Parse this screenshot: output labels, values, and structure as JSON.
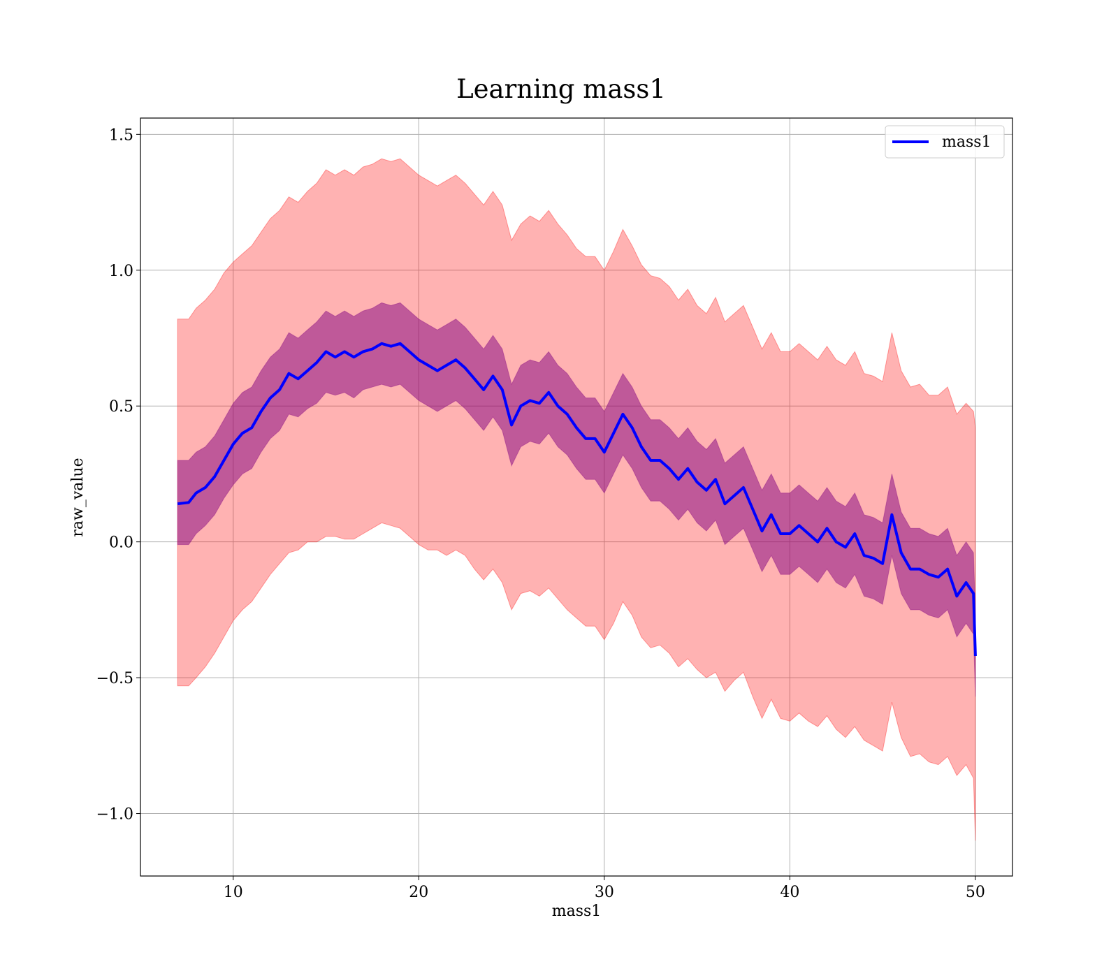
{
  "chart_data": {
    "type": "area",
    "title": "Learning mass1",
    "xlabel": "mass1",
    "ylabel": "raw_value",
    "xlim": [
      5,
      52
    ],
    "ylim": [
      -1.23,
      1.56
    ],
    "xticks": [
      10,
      20,
      30,
      40,
      50
    ],
    "xtick_labels": [
      "10",
      "20",
      "30",
      "40",
      "50"
    ],
    "yticks": [
      -1.0,
      -0.5,
      0.0,
      0.5,
      1.0,
      1.5
    ],
    "ytick_labels": [
      "−1.0",
      "−0.5",
      "0.0",
      "0.5",
      "1.0",
      "1.5"
    ],
    "grid": true,
    "legend": {
      "position": "top-right",
      "entries": [
        "mass1"
      ]
    },
    "x": [
      7.0,
      7.6,
      8.0,
      8.5,
      9.0,
      9.5,
      10.0,
      10.5,
      11.0,
      11.5,
      12.0,
      12.5,
      13.0,
      13.5,
      14.0,
      14.5,
      15.0,
      15.5,
      16.0,
      16.5,
      17.0,
      17.5,
      18.0,
      18.5,
      19.0,
      19.5,
      20.0,
      20.5,
      21.0,
      21.5,
      22.0,
      22.5,
      23.0,
      23.5,
      24.0,
      24.5,
      25.0,
      25.5,
      26.0,
      26.5,
      27.0,
      27.5,
      28.0,
      28.5,
      29.0,
      29.5,
      30.0,
      30.5,
      31.0,
      31.5,
      32.0,
      32.5,
      33.0,
      33.5,
      34.0,
      34.5,
      35.0,
      35.5,
      36.0,
      36.5,
      37.0,
      37.5,
      38.0,
      38.5,
      39.0,
      39.5,
      40.0,
      40.5,
      41.0,
      41.5,
      42.0,
      42.5,
      43.0,
      43.5,
      44.0,
      44.5,
      45.0,
      45.5,
      46.0,
      46.5,
      47.0,
      47.5,
      48.0,
      48.5,
      49.0,
      49.5,
      49.9,
      50.0
    ],
    "series": [
      {
        "name": "mass1",
        "color": "#0000ff",
        "values": [
          0.14,
          0.145,
          0.18,
          0.2,
          0.24,
          0.3,
          0.36,
          0.4,
          0.42,
          0.48,
          0.53,
          0.56,
          0.62,
          0.6,
          0.63,
          0.66,
          0.7,
          0.68,
          0.7,
          0.68,
          0.7,
          0.71,
          0.73,
          0.72,
          0.73,
          0.7,
          0.67,
          0.65,
          0.63,
          0.65,
          0.67,
          0.64,
          0.6,
          0.56,
          0.61,
          0.56,
          0.43,
          0.5,
          0.52,
          0.51,
          0.55,
          0.5,
          0.47,
          0.42,
          0.38,
          0.38,
          0.33,
          0.4,
          0.47,
          0.42,
          0.35,
          0.3,
          0.3,
          0.27,
          0.23,
          0.27,
          0.22,
          0.19,
          0.23,
          0.14,
          0.17,
          0.2,
          0.12,
          0.04,
          0.1,
          0.03,
          0.03,
          0.06,
          0.03,
          0.0,
          0.05,
          0.0,
          -0.02,
          0.03,
          -0.05,
          -0.06,
          -0.08,
          0.1,
          -0.04,
          -0.1,
          -0.1,
          -0.12,
          -0.13,
          -0.1,
          -0.2,
          -0.15,
          -0.19,
          -0.42
        ]
      }
    ],
    "bands": [
      {
        "color": "#ff0000",
        "opacity": 0.3,
        "lower": [
          -0.53,
          -0.53,
          -0.5,
          -0.46,
          -0.41,
          -0.35,
          -0.29,
          -0.25,
          -0.22,
          -0.17,
          -0.12,
          -0.08,
          -0.04,
          -0.03,
          0.0,
          0.0,
          0.02,
          0.02,
          0.01,
          0.01,
          0.03,
          0.05,
          0.07,
          0.06,
          0.05,
          0.02,
          -0.01,
          -0.03,
          -0.03,
          -0.05,
          -0.03,
          -0.05,
          -0.1,
          -0.14,
          -0.1,
          -0.15,
          -0.25,
          -0.19,
          -0.18,
          -0.2,
          -0.17,
          -0.21,
          -0.25,
          -0.28,
          -0.31,
          -0.31,
          -0.36,
          -0.3,
          -0.22,
          -0.27,
          -0.35,
          -0.39,
          -0.38,
          -0.41,
          -0.46,
          -0.43,
          -0.47,
          -0.5,
          -0.48,
          -0.55,
          -0.51,
          -0.48,
          -0.57,
          -0.65,
          -0.58,
          -0.65,
          -0.66,
          -0.63,
          -0.66,
          -0.68,
          -0.64,
          -0.69,
          -0.72,
          -0.68,
          -0.73,
          -0.75,
          -0.77,
          -0.59,
          -0.72,
          -0.79,
          -0.78,
          -0.81,
          -0.82,
          -0.79,
          -0.86,
          -0.82,
          -0.87,
          -1.1
        ]
      },
      {
        "color": "#ff0000",
        "opacity": 0.3,
        "upper": [
          0.82,
          0.82,
          0.86,
          0.89,
          0.93,
          0.99,
          1.03,
          1.06,
          1.09,
          1.14,
          1.19,
          1.22,
          1.27,
          1.25,
          1.29,
          1.32,
          1.37,
          1.35,
          1.37,
          1.35,
          1.38,
          1.39,
          1.41,
          1.4,
          1.41,
          1.38,
          1.35,
          1.33,
          1.31,
          1.33,
          1.35,
          1.32,
          1.28,
          1.24,
          1.29,
          1.24,
          1.11,
          1.17,
          1.2,
          1.18,
          1.22,
          1.17,
          1.13,
          1.08,
          1.05,
          1.05,
          1.0,
          1.07,
          1.15,
          1.09,
          1.02,
          0.98,
          0.97,
          0.94,
          0.89,
          0.93,
          0.87,
          0.84,
          0.9,
          0.81,
          0.84,
          0.87,
          0.79,
          0.71,
          0.77,
          0.7,
          0.7,
          0.73,
          0.7,
          0.67,
          0.72,
          0.67,
          0.65,
          0.7,
          0.62,
          0.61,
          0.59,
          0.77,
          0.63,
          0.57,
          0.58,
          0.54,
          0.54,
          0.57,
          0.47,
          0.51,
          0.48,
          0.42
        ]
      },
      {
        "color": "#800080",
        "opacity": 0.5,
        "lower": [
          -0.01,
          -0.01,
          0.03,
          0.06,
          0.1,
          0.16,
          0.21,
          0.25,
          0.27,
          0.33,
          0.38,
          0.41,
          0.47,
          0.46,
          0.49,
          0.51,
          0.55,
          0.54,
          0.55,
          0.53,
          0.56,
          0.57,
          0.58,
          0.57,
          0.58,
          0.55,
          0.52,
          0.5,
          0.48,
          0.5,
          0.52,
          0.49,
          0.45,
          0.41,
          0.46,
          0.41,
          0.28,
          0.35,
          0.37,
          0.36,
          0.4,
          0.35,
          0.32,
          0.27,
          0.23,
          0.23,
          0.18,
          0.25,
          0.32,
          0.27,
          0.2,
          0.15,
          0.15,
          0.12,
          0.08,
          0.12,
          0.07,
          0.04,
          0.08,
          -0.01,
          0.02,
          0.05,
          -0.03,
          -0.11,
          -0.05,
          -0.12,
          -0.12,
          -0.09,
          -0.12,
          -0.15,
          -0.1,
          -0.15,
          -0.17,
          -0.12,
          -0.2,
          -0.21,
          -0.23,
          -0.05,
          -0.19,
          -0.25,
          -0.25,
          -0.27,
          -0.28,
          -0.25,
          -0.35,
          -0.3,
          -0.34,
          -0.57
        ]
      },
      {
        "color": "#800080",
        "opacity": 0.5,
        "upper": [
          0.3,
          0.3,
          0.33,
          0.35,
          0.39,
          0.45,
          0.51,
          0.55,
          0.57,
          0.63,
          0.68,
          0.71,
          0.77,
          0.75,
          0.78,
          0.81,
          0.85,
          0.83,
          0.85,
          0.83,
          0.85,
          0.86,
          0.88,
          0.87,
          0.88,
          0.85,
          0.82,
          0.8,
          0.78,
          0.8,
          0.82,
          0.79,
          0.75,
          0.71,
          0.76,
          0.71,
          0.58,
          0.65,
          0.67,
          0.66,
          0.7,
          0.65,
          0.62,
          0.57,
          0.53,
          0.53,
          0.48,
          0.55,
          0.62,
          0.57,
          0.5,
          0.45,
          0.45,
          0.42,
          0.38,
          0.42,
          0.37,
          0.34,
          0.38,
          0.29,
          0.32,
          0.35,
          0.27,
          0.19,
          0.25,
          0.18,
          0.18,
          0.21,
          0.18,
          0.15,
          0.2,
          0.15,
          0.13,
          0.18,
          0.1,
          0.09,
          0.07,
          0.25,
          0.11,
          0.05,
          0.05,
          0.03,
          0.02,
          0.05,
          -0.05,
          0.0,
          -0.04,
          -0.27
        ]
      }
    ]
  }
}
